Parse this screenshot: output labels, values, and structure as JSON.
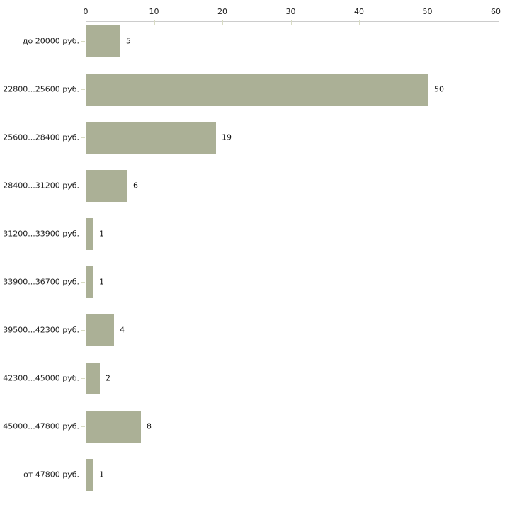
{
  "chart_data": {
    "type": "bar",
    "orientation": "horizontal",
    "title": "",
    "xlabel": "",
    "ylabel": "",
    "categories": [
      "до 20000 руб.",
      "22800...25600 руб.",
      "25600...28400 руб.",
      "28400...31200 руб.",
      "31200...33900 руб.",
      "33900...36700 руб.",
      "39500...42300 руб.",
      "42300...45000 руб.",
      "45000...47800 руб.",
      "от 47800 руб."
    ],
    "values": [
      5,
      50,
      19,
      6,
      1,
      1,
      4,
      2,
      8,
      1
    ],
    "value_labels": [
      "5",
      "50",
      "19",
      "6",
      "1",
      "1",
      "4",
      "2",
      "8",
      "1"
    ],
    "x_ticks": [
      "0",
      "10",
      "20",
      "30",
      "40",
      "50",
      "60"
    ],
    "x_tick_values": [
      0,
      10,
      20,
      30,
      40,
      50,
      60
    ],
    "xlim": [
      0,
      60
    ],
    "grid": false,
    "legend": false,
    "axis_position": "top",
    "colors": {
      "bar": "#abb096",
      "axis_line": "#cccccc",
      "tick_mark": "#d8dbc3",
      "text": "#222222",
      "background": "#ffffff"
    }
  }
}
